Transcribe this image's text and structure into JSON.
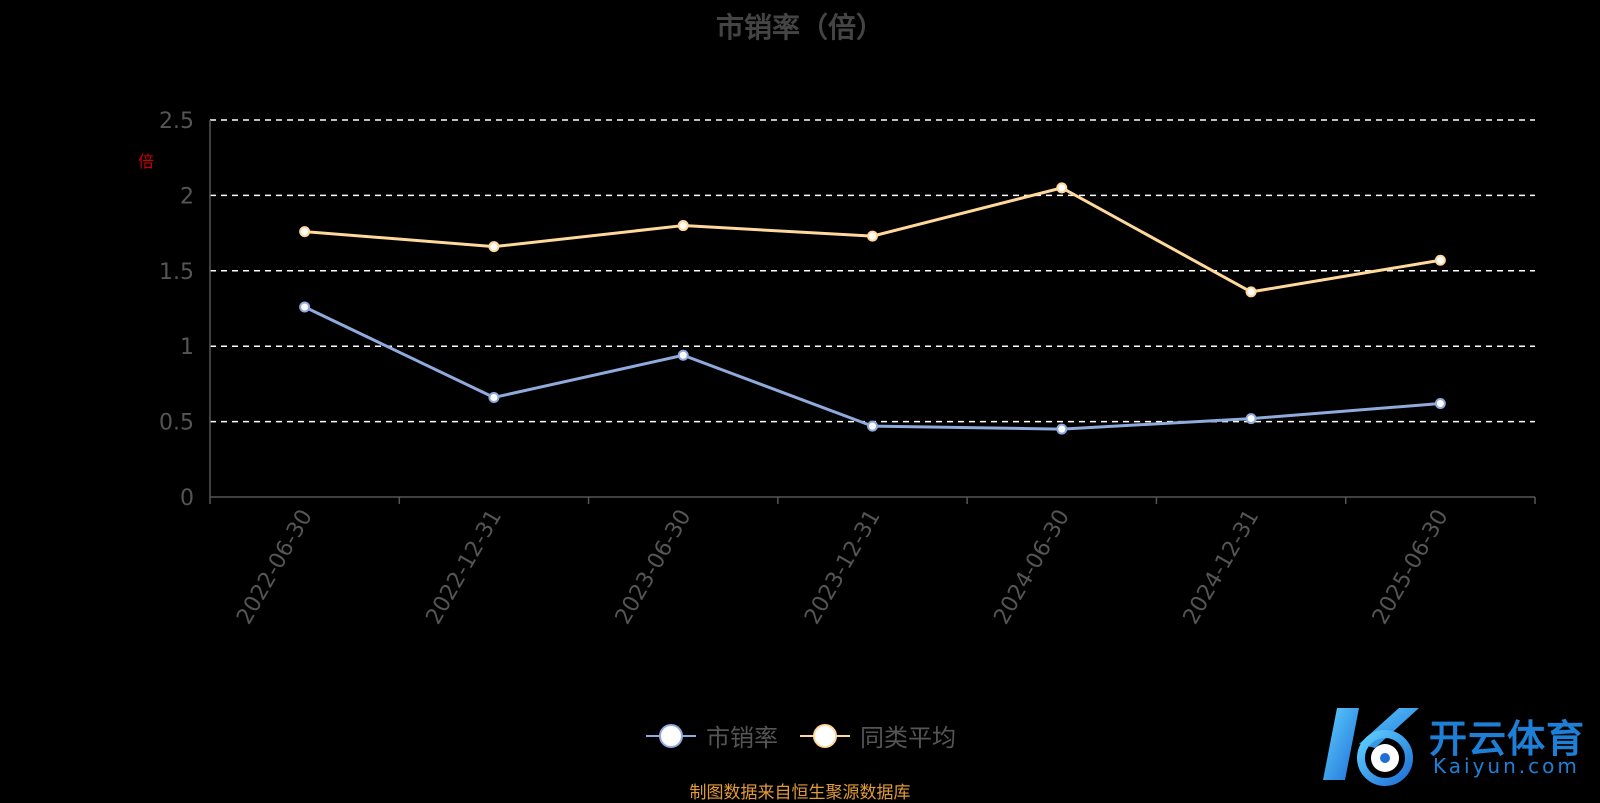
{
  "title": "市销率（倍）",
  "unit": "倍",
  "source_note": "制图数据来自恒生聚源数据库",
  "watermark": {
    "name_cn": "开云体育",
    "name_en": "Kaiyun.com"
  },
  "colors": {
    "series_ps": "#8faadc",
    "series_avg": "#ffd89b",
    "grid": "#ffffff",
    "axis": "#555555",
    "source": "#e39b39",
    "unit": "#cc0000",
    "watermark": "#1e7fd6"
  },
  "chart_data": {
    "type": "line",
    "title": "市销率（倍）",
    "x": [
      "2022-06-30",
      "2022-12-31",
      "2023-06-30",
      "2023-12-31",
      "2024-06-30",
      "2024-12-31",
      "2025-06-30"
    ],
    "series": [
      {
        "name": "市销率",
        "color": "#8faadc",
        "values": [
          1.26,
          0.66,
          0.94,
          0.47,
          0.45,
          0.52,
          0.62
        ]
      },
      {
        "name": "同类平均",
        "color": "#ffd89b",
        "values": [
          1.76,
          1.66,
          1.8,
          1.73,
          2.05,
          1.36,
          1.57
        ]
      }
    ],
    "y_ticks": [
      0,
      0.5,
      1,
      1.5,
      2,
      2.5
    ],
    "y_tick_labels": [
      "0",
      "0.5",
      "1",
      "1.5",
      "2",
      "2.5"
    ],
    "ylim": [
      0,
      2.5
    ],
    "grid": true,
    "legend_position": "bottom-center"
  }
}
